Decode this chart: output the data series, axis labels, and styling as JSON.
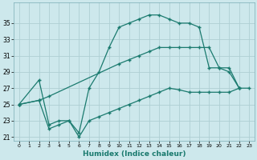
{
  "xlabel": "Humidex (Indice chaleur)",
  "ylabel": "",
  "background_color": "#cde8ec",
  "grid_color": "#aecfd4",
  "line_color": "#1a7a6e",
  "xlim": [
    -0.5,
    23.5
  ],
  "ylim": [
    20.5,
    37.5
  ],
  "xticks": [
    0,
    1,
    2,
    3,
    4,
    5,
    6,
    7,
    8,
    9,
    10,
    11,
    12,
    13,
    14,
    15,
    16,
    17,
    18,
    19,
    20,
    21,
    22,
    23
  ],
  "yticks": [
    21,
    23,
    25,
    27,
    29,
    31,
    33,
    35
  ],
  "line_zigzag": {
    "x": [
      0,
      2,
      3,
      4,
      5,
      6,
      7,
      8,
      9,
      10,
      11,
      12,
      13,
      14,
      15,
      16,
      17,
      18,
      19,
      20,
      21,
      22
    ],
    "y": [
      25,
      28,
      22.5,
      23,
      23,
      21.5,
      27,
      29,
      32,
      34.5,
      35,
      35.5,
      36,
      36,
      35.5,
      35,
      35,
      34.5,
      29.5,
      29.5,
      29,
      27
    ]
  },
  "line_mid": {
    "x": [
      0,
      2,
      3,
      10,
      11,
      12,
      13,
      14,
      15,
      16,
      17,
      18,
      19,
      20,
      21,
      22
    ],
    "y": [
      25,
      25.5,
      26,
      30,
      30.5,
      31,
      31.5,
      32,
      32,
      32,
      32,
      32,
      32,
      29.5,
      29.5,
      27
    ]
  },
  "line_min": {
    "x": [
      0,
      2,
      3,
      4,
      5,
      6,
      7,
      8,
      9,
      10,
      11,
      12,
      13,
      14,
      15,
      16,
      17,
      18,
      19,
      20,
      21,
      22,
      23
    ],
    "y": [
      25,
      25.5,
      22,
      22.5,
      23,
      21,
      23,
      23.5,
      24,
      24.5,
      25,
      25.5,
      26,
      26.5,
      27,
      26.8,
      26.5,
      26.5,
      26.5,
      26.5,
      26.5,
      27,
      27
    ]
  }
}
